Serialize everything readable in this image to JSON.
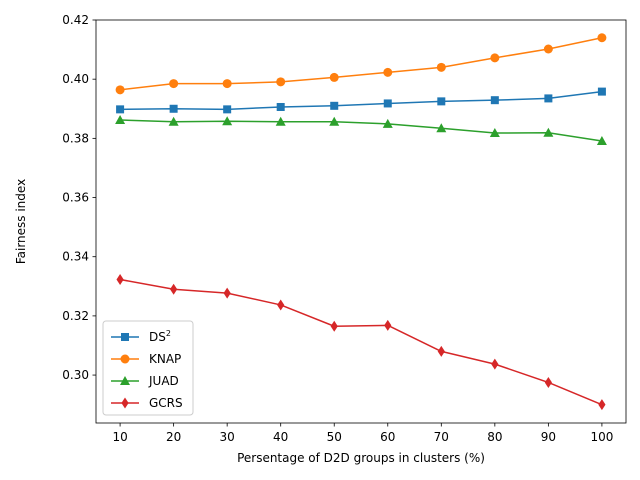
{
  "chart_data": {
    "type": "line",
    "xlabel": "Persentage of D2D groups in clusters (%)",
    "ylabel": "Fairness index",
    "x": [
      10,
      20,
      30,
      40,
      50,
      60,
      70,
      80,
      90,
      100
    ],
    "xlim": [
      5.5,
      104.5
    ],
    "ylim": [
      0.2838,
      0.42
    ],
    "xticks": [
      10,
      20,
      30,
      40,
      50,
      60,
      70,
      80,
      90,
      100
    ],
    "yticks": [
      0.3,
      0.32,
      0.34,
      0.36,
      0.38,
      0.4,
      0.42
    ],
    "ytick_labels": [
      "0.30",
      "0.32",
      "0.34",
      "0.36",
      "0.38",
      "0.40",
      "0.42"
    ],
    "grid": false,
    "legend_position": "lower-left",
    "series": [
      {
        "name": "DS",
        "name_sup": "2",
        "color": "#1f77b4",
        "marker": "square",
        "values": [
          0.3898,
          0.39,
          0.3898,
          0.3906,
          0.391,
          0.3918,
          0.3925,
          0.3929,
          0.3935,
          0.3958
        ]
      },
      {
        "name": "KNAP",
        "color": "#ff7f0e",
        "marker": "circle",
        "values": [
          0.3964,
          0.3985,
          0.3985,
          0.3991,
          0.4006,
          0.4023,
          0.404,
          0.4072,
          0.4102,
          0.414
        ]
      },
      {
        "name": "JUAD",
        "color": "#2ca02c",
        "marker": "triangle",
        "values": [
          0.3862,
          0.3856,
          0.3858,
          0.3856,
          0.3856,
          0.3849,
          0.3834,
          0.3818,
          0.3819,
          0.3791
        ]
      },
      {
        "name": "GCRS",
        "color": "#d62728",
        "marker": "diamond",
        "values": [
          0.3323,
          0.329,
          0.3277,
          0.3237,
          0.3165,
          0.3168,
          0.308,
          0.3037,
          0.2975,
          0.29
        ]
      }
    ]
  }
}
